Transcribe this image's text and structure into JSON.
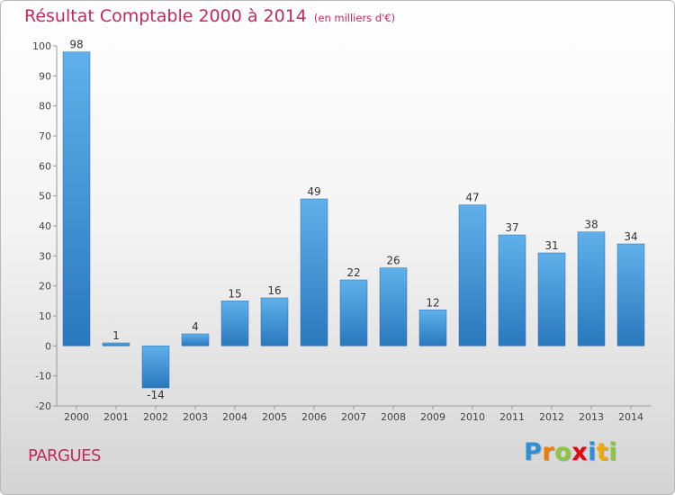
{
  "title": "Résultat Comptable 2000 à 2014",
  "subtitle": "(en milliers d'€)",
  "place": "PARGUES",
  "logo": {
    "letters": [
      {
        "char": "P",
        "color": "#2e8fd9"
      },
      {
        "char": "r",
        "color": "#ef7d00"
      },
      {
        "char": "o",
        "color": "#8dc63f"
      },
      {
        "char": "x",
        "color": "#e30613"
      },
      {
        "char": "i",
        "color": "#2e8fd9"
      },
      {
        "char": "t",
        "color": "#f2a900"
      },
      {
        "char": "i",
        "color": "#8dc63f"
      }
    ]
  },
  "chart_data": {
    "type": "bar",
    "title": "Résultat Comptable 2000 à 2014",
    "subtitle": "(en milliers d'€)",
    "categories": [
      "2000",
      "2001",
      "2002",
      "2003",
      "2004",
      "2005",
      "2006",
      "2007",
      "2008",
      "2009",
      "2010",
      "2011",
      "2012",
      "2013",
      "2014"
    ],
    "values": [
      98,
      1,
      -14,
      4,
      15,
      16,
      49,
      22,
      26,
      12,
      47,
      37,
      31,
      38,
      34
    ],
    "ylim": [
      -20,
      100
    ],
    "yticks": [
      -20,
      -10,
      0,
      10,
      20,
      30,
      40,
      50,
      60,
      70,
      80,
      90,
      100
    ],
    "xlabel": "",
    "ylabel": "",
    "grid": false,
    "bar_color": "#3a8fd4"
  }
}
